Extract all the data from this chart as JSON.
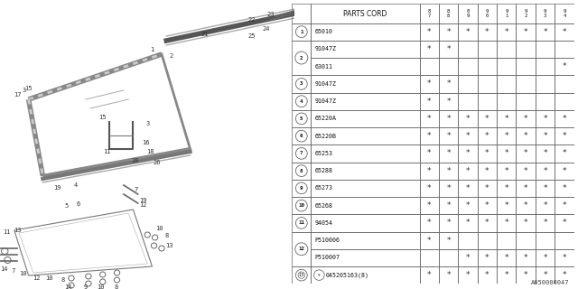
{
  "catalog_code": "A650000047",
  "bg_color": "#f0f0f0",
  "columns": [
    "PARTS CORD",
    "8\n7",
    "8\n8",
    "8\n9",
    "9\n0",
    "9\n1",
    "9\n2",
    "9\n3",
    "9\n4"
  ],
  "rows": [
    {
      "num": "1",
      "part": "65010",
      "marks": [
        1,
        1,
        1,
        1,
        1,
        1,
        1,
        1
      ],
      "double": false,
      "special": false
    },
    {
      "num": "2",
      "part": "91047Z",
      "marks": [
        1,
        1,
        0,
        0,
        0,
        0,
        0,
        0
      ],
      "double": true,
      "part2": "63011",
      "marks2": [
        0,
        0,
        0,
        0,
        0,
        0,
        0,
        1
      ],
      "special": false
    },
    {
      "num": "3",
      "part": "91047Z",
      "marks": [
        1,
        1,
        0,
        0,
        0,
        0,
        0,
        0
      ],
      "double": false,
      "special": false
    },
    {
      "num": "4",
      "part": "91047Z",
      "marks": [
        1,
        1,
        0,
        0,
        0,
        0,
        0,
        0
      ],
      "double": false,
      "special": false
    },
    {
      "num": "5",
      "part": "65220A",
      "marks": [
        1,
        1,
        1,
        1,
        1,
        1,
        1,
        1
      ],
      "double": false,
      "special": false
    },
    {
      "num": "6",
      "part": "65220B",
      "marks": [
        1,
        1,
        1,
        1,
        1,
        1,
        1,
        1
      ],
      "double": false,
      "special": false
    },
    {
      "num": "7",
      "part": "65253",
      "marks": [
        1,
        1,
        1,
        1,
        1,
        1,
        1,
        1
      ],
      "double": false,
      "special": false
    },
    {
      "num": "8",
      "part": "65288",
      "marks": [
        1,
        1,
        1,
        1,
        1,
        1,
        1,
        1
      ],
      "double": false,
      "special": false
    },
    {
      "num": "9",
      "part": "65273",
      "marks": [
        1,
        1,
        1,
        1,
        1,
        1,
        1,
        1
      ],
      "double": false,
      "special": false
    },
    {
      "num": "10",
      "part": "65268",
      "marks": [
        1,
        1,
        1,
        1,
        1,
        1,
        1,
        1
      ],
      "double": false,
      "special": false
    },
    {
      "num": "11",
      "part": "94054",
      "marks": [
        1,
        1,
        1,
        1,
        1,
        1,
        1,
        1
      ],
      "double": false,
      "special": false
    },
    {
      "num": "12",
      "part": "P510006",
      "marks": [
        1,
        1,
        0,
        0,
        0,
        0,
        0,
        0
      ],
      "double": true,
      "part2": "P510007",
      "marks2": [
        0,
        0,
        1,
        1,
        1,
        1,
        1,
        1
      ],
      "special": false
    },
    {
      "num": "13",
      "part": "045205163(8)",
      "marks": [
        1,
        1,
        1,
        1,
        1,
        1,
        1,
        1
      ],
      "double": false,
      "special": true
    }
  ],
  "border_color": "#666666",
  "text_color": "#111111",
  "star": "*"
}
